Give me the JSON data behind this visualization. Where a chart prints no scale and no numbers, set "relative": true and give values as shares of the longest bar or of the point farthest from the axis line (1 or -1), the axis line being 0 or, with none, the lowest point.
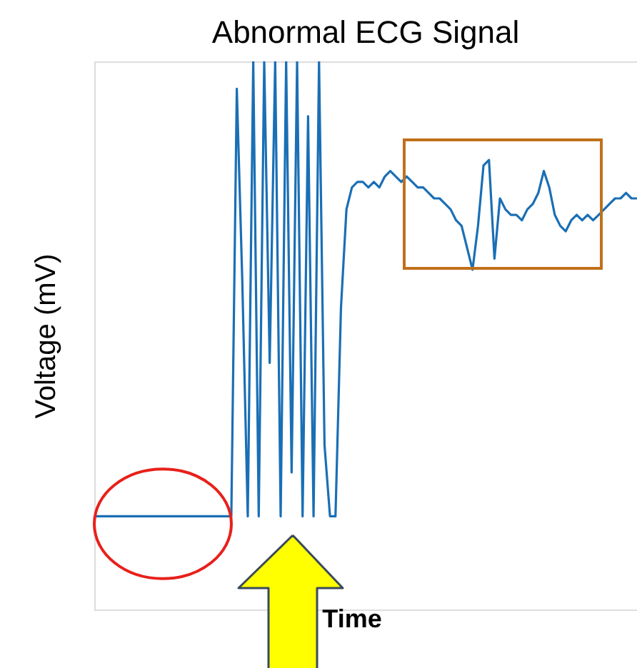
{
  "chart_data": {
    "type": "line",
    "title": "Abnormal ECG Signal",
    "xlabel": "Time",
    "ylabel": "Voltage (mV)",
    "relative": true,
    "categories": [
      null,
      null,
      null,
      null,
      null,
      null,
      null,
      null,
      null,
      null,
      null,
      null,
      null,
      null,
      null,
      null,
      null,
      null,
      null,
      null,
      null,
      null,
      null,
      null,
      null,
      null,
      null,
      null,
      null,
      null,
      null,
      null,
      null,
      null,
      null,
      null,
      null,
      null,
      null,
      null,
      null,
      null,
      null,
      null,
      null,
      null,
      null,
      null,
      null,
      null,
      null,
      null,
      null,
      null,
      null,
      null,
      null,
      null,
      null,
      null,
      null,
      null,
      null,
      null,
      null,
      null,
      null,
      null,
      null,
      null,
      null,
      null,
      null,
      null,
      null,
      null,
      null,
      null,
      null,
      null,
      null,
      null,
      null,
      null,
      null,
      null,
      null,
      null,
      null,
      null,
      null,
      null,
      null,
      null,
      null,
      null,
      null,
      null,
      null,
      null
    ],
    "series": [
      {
        "color": "#1a6fb5",
        "values": [
          0.17,
          0.17,
          0.17,
          0.17,
          0.17,
          0.17,
          0.17,
          0.17,
          0.17,
          0.17,
          0.17,
          0.17,
          0.17,
          0.17,
          0.17,
          0.17,
          0.17,
          0.17,
          0.17,
          0.17,
          0.17,
          0.17,
          0.17,
          0.17,
          0.17,
          0.17,
          0.95,
          0.6,
          0.17,
          1,
          0.17,
          1,
          0.45,
          1,
          0.17,
          1,
          0.25,
          1,
          0.17,
          0.9,
          0.17,
          1,
          0.3,
          0.17,
          0.17,
          0.55,
          0.73,
          0.77,
          0.78,
          0.78,
          0.77,
          0.78,
          0.77,
          0.79,
          0.8,
          0.79,
          0.78,
          0.79,
          0.78,
          0.77,
          0.77,
          0.76,
          0.75,
          0.75,
          0.74,
          0.73,
          0.71,
          0.7,
          0.66,
          0.62,
          0.7,
          0.81,
          0.82,
          0.64,
          0.75,
          0.73,
          0.72,
          0.72,
          0.71,
          0.73,
          0.74,
          0.76,
          0.8,
          0.77,
          0.72,
          0.7,
          0.69,
          0.71,
          0.72,
          0.71,
          0.72,
          0.71,
          0.72,
          0.73,
          0.74,
          0.75,
          0.75,
          0.76,
          0.75,
          0.75
        ]
      }
    ]
  }
}
